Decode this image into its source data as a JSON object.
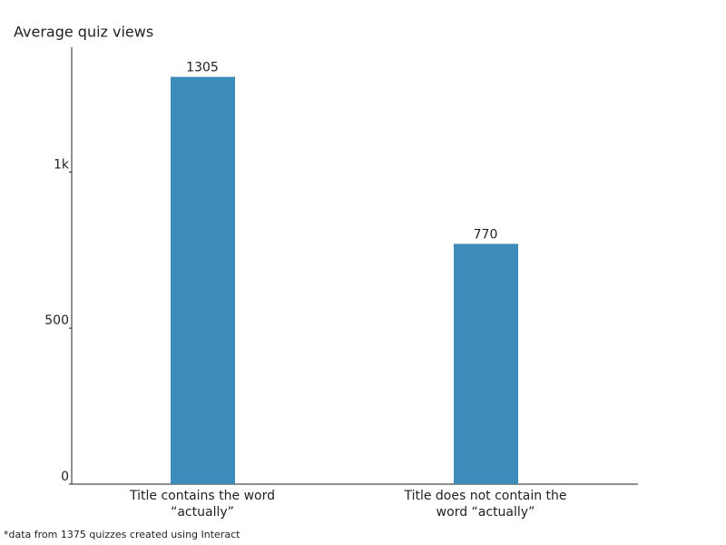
{
  "chart_data": {
    "type": "bar",
    "y_label": "Average quiz views",
    "categories": [
      "Title contains the word “actually”",
      "Title does not contain the word “actually”"
    ],
    "values": [
      1305,
      770
    ],
    "color": "#3d8bba",
    "ylim": [
      0,
      1400
    ],
    "yticks": [
      0,
      500,
      {
        "value": 1000,
        "label": "1k"
      }
    ],
    "footnote": "*data from 1375 quizzes created using Interact"
  }
}
